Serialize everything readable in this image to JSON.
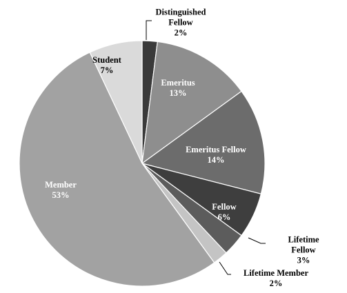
{
  "chart_data": {
    "type": "pie",
    "categories": [
      "Distinguished Fellow",
      "Emeritus",
      "Emeritus Fellow",
      "Fellow",
      "Lifetime Fellow",
      "Lifetime Member",
      "Member",
      "Student"
    ],
    "values": [
      2,
      13,
      14,
      6,
      3,
      2,
      53,
      7
    ],
    "value_labels": [
      "2%",
      "13%",
      "14%",
      "6%",
      "3%",
      "2%",
      "53%",
      "7%"
    ],
    "colors": [
      "#3a3a3a",
      "#8e8e8e",
      "#6c6c6c",
      "#3e3e3e",
      "#5c5c5c",
      "#c4c4c4",
      "#a2a2a2",
      "#dadada"
    ]
  }
}
